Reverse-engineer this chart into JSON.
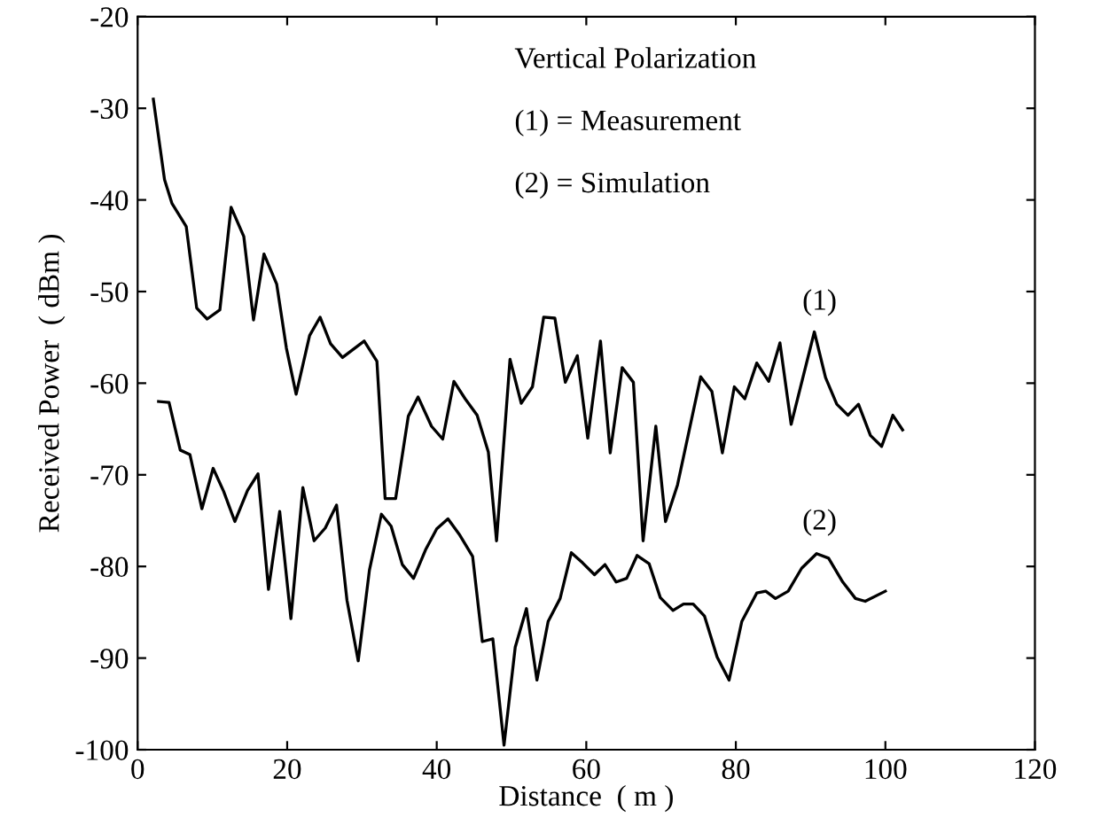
{
  "chart_data": {
    "type": "line",
    "xlabel": "Distance  ( m )",
    "ylabel": "Received Power  ( dBm )",
    "xlim": [
      0,
      120
    ],
    "ylim": [
      -100,
      -20
    ],
    "xticks": [
      0,
      20,
      40,
      60,
      80,
      100,
      120
    ],
    "yticks": [
      -100,
      -90,
      -80,
      -70,
      -60,
      -50,
      -40,
      -30,
      -20
    ],
    "grid": false,
    "legend": false,
    "marker": "none",
    "line_style": "solid",
    "series": [
      {
        "color": "#000000",
        "x": [
          2.1,
          3.6,
          4.6,
          6.5,
          7.9,
          9.3,
          11.0,
          12.5,
          14.2,
          15.5,
          16.9,
          18.6,
          19.9,
          21.2,
          23.0,
          24.4,
          25.8,
          27.4,
          30.3,
          32.0,
          33.1,
          34.5,
          36.2,
          37.5,
          39.3,
          40.8,
          42.3,
          43.8,
          45.4,
          46.9,
          48.0,
          49.8,
          51.3,
          52.8,
          54.3,
          55.8,
          57.2,
          58.8,
          60.2,
          61.9,
          63.2,
          64.8,
          66.3,
          67.6,
          69.3,
          70.6,
          72.2,
          75.3,
          76.8,
          78.2,
          79.8,
          81.2,
          82.8,
          84.4,
          85.9,
          87.4,
          90.5,
          92.0,
          93.5,
          95.0,
          96.4,
          98.0,
          99.5,
          101.0,
          102.3
        ],
        "values": [
          -29.0,
          -37.8,
          -40.4,
          -42.9,
          -51.8,
          -53.0,
          -52.0,
          -40.8,
          -44.0,
          -53.1,
          -45.9,
          -49.2,
          -56.2,
          -61.2,
          -54.8,
          -52.8,
          -55.7,
          -57.2,
          -55.4,
          -57.6,
          -72.6,
          -72.6,
          -63.6,
          -61.5,
          -64.7,
          -66.1,
          -59.8,
          -61.7,
          -63.5,
          -67.5,
          -77.2,
          -57.4,
          -62.2,
          -60.4,
          -52.8,
          -52.9,
          -59.9,
          -57.0,
          -66.0,
          -55.4,
          -67.6,
          -58.3,
          -59.9,
          -77.2,
          -64.7,
          -75.1,
          -71.1,
          -59.3,
          -60.9,
          -67.6,
          -60.4,
          -61.7,
          -57.8,
          -59.8,
          -55.6,
          -64.5,
          -54.4,
          -59.4,
          -62.3,
          -63.5,
          -62.3,
          -65.7,
          -66.9,
          -63.5,
          -65.1
        ]
      },
      {
        "color": "#000000",
        "x": [
          2.8,
          4.2,
          5.7,
          7.0,
          8.6,
          10.1,
          11.5,
          13.0,
          14.7,
          16.1,
          17.5,
          19.0,
          20.5,
          22.1,
          23.6,
          25.1,
          26.6,
          28.0,
          29.5,
          31.0,
          32.6,
          33.9,
          35.4,
          36.9,
          38.5,
          40.0,
          41.5,
          43.1,
          44.8,
          46.1,
          47.5,
          49.0,
          50.5,
          52.0,
          53.4,
          54.9,
          56.5,
          58.0,
          59.5,
          61.1,
          62.5,
          64.0,
          65.4,
          66.8,
          68.4,
          69.9,
          71.6,
          73.0,
          74.3,
          75.8,
          77.5,
          79.1,
          80.8,
          82.8,
          84.0,
          85.3,
          87.0,
          88.8,
          90.8,
          92.4,
          94.3,
          96.0,
          97.3,
          100.0
        ],
        "values": [
          -62.0,
          -62.1,
          -67.3,
          -67.8,
          -73.7,
          -69.3,
          -71.8,
          -75.1,
          -71.7,
          -69.9,
          -82.5,
          -74.0,
          -85.7,
          -71.4,
          -77.2,
          -75.8,
          -73.3,
          -83.7,
          -90.3,
          -80.4,
          -74.3,
          -75.6,
          -79.8,
          -81.3,
          -78.2,
          -75.9,
          -74.8,
          -76.6,
          -78.9,
          -88.2,
          -87.9,
          -99.5,
          -88.8,
          -84.6,
          -92.4,
          -86.0,
          -83.5,
          -78.5,
          -79.6,
          -80.9,
          -79.8,
          -81.7,
          -81.3,
          -78.8,
          -79.7,
          -83.4,
          -84.8,
          -84.1,
          -84.1,
          -85.4,
          -89.9,
          -92.4,
          -86.0,
          -82.9,
          -82.7,
          -83.5,
          -82.7,
          -80.2,
          -78.6,
          -79.1,
          -81.7,
          -83.5,
          -83.8,
          -82.7
        ]
      }
    ],
    "annotations": [
      "Vertical Polarization",
      "(1) = Measurement",
      "(2) = Simulation",
      "(1)",
      "(2)"
    ]
  }
}
